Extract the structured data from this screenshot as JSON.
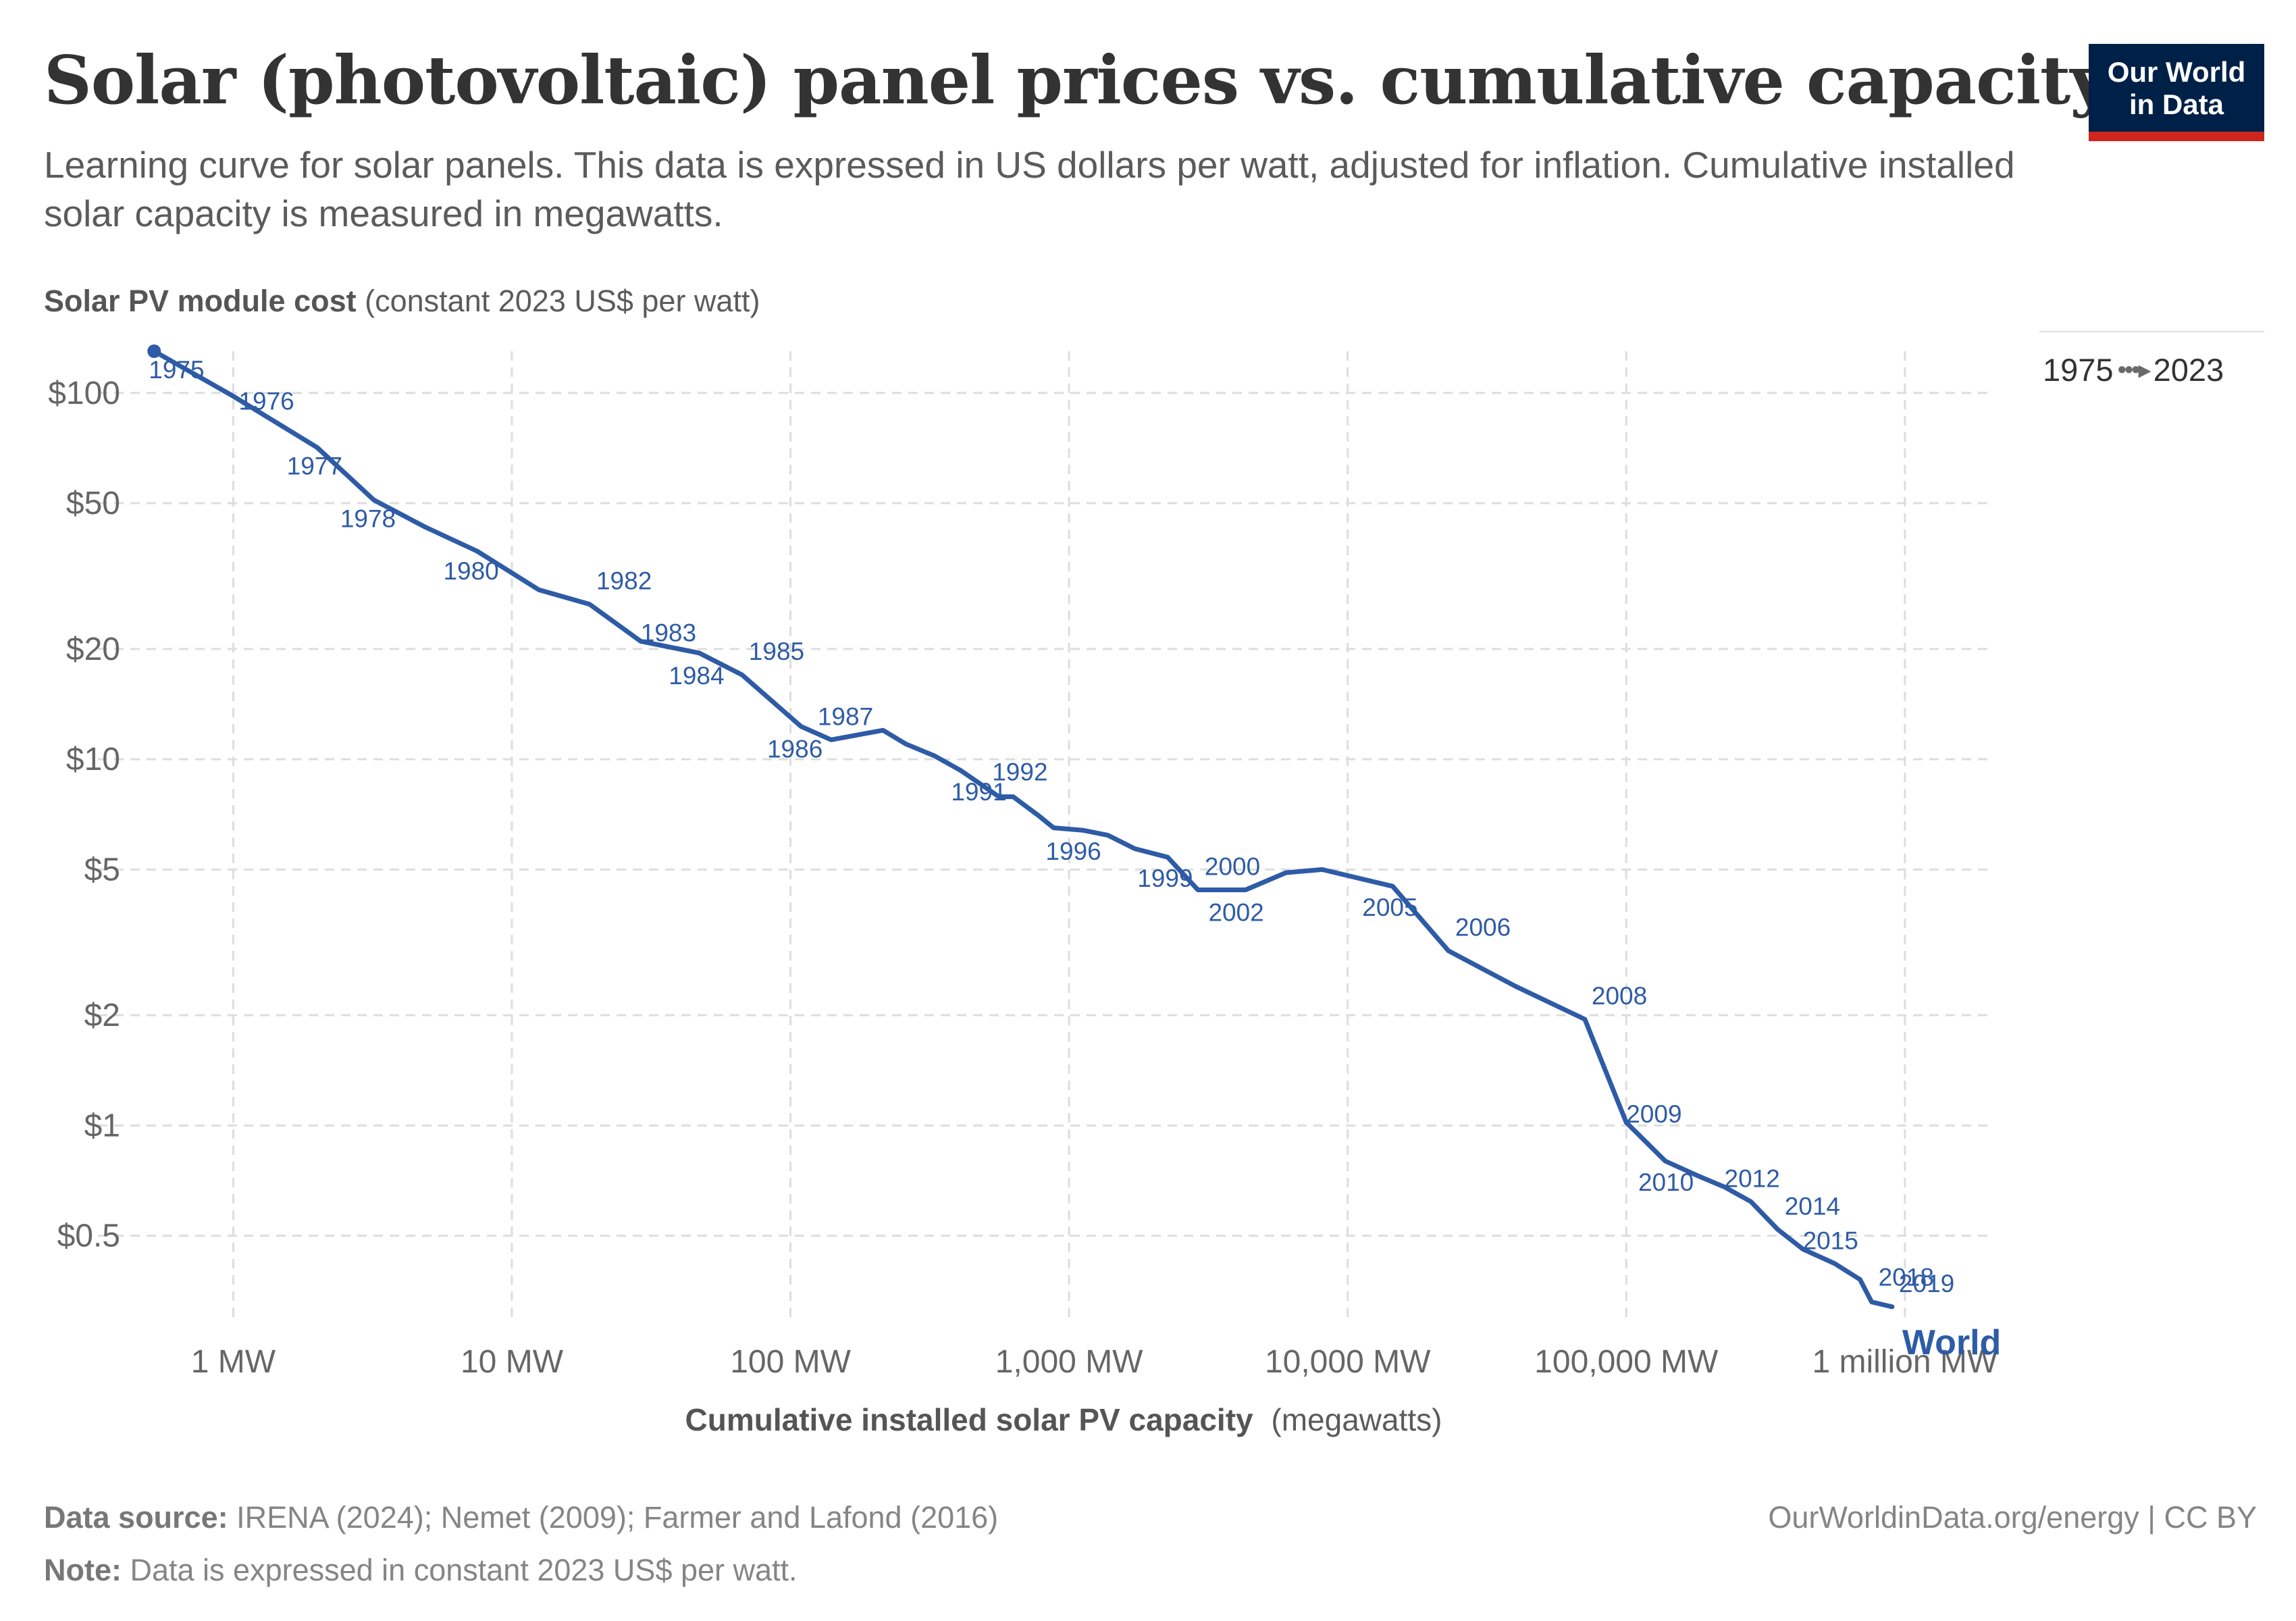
{
  "header": {
    "title": "Solar (photovoltaic) panel prices vs. cumulative capacity",
    "subtitle": "Learning curve for solar panels. This data is expressed in US dollars per watt, adjusted for inflation. Cumulative installed solar capacity is measured in megawatts.",
    "logo_line1": "Our World",
    "logo_line2": "in Data"
  },
  "axes": {
    "y_title_bold": "Solar PV module cost",
    "y_title_rest": "(constant 2023 US$ per watt)",
    "x_title_bold": "Cumulative installed solar PV capacity",
    "x_title_rest": "(megawatts)"
  },
  "timeline": {
    "start": "1975",
    "end": "2023"
  },
  "footer": {
    "source_label": "Data source:",
    "source_text": "IRENA (2024); Nemet (2009); Farmer and Lafond (2016)",
    "note_label": "Note:",
    "note_text": "Data is expressed in constant 2023 US$ per watt.",
    "credit": "OurWorldinData.org/energy | CC BY"
  },
  "colors": {
    "series": "#2e5ba6",
    "grid": "#dddddd",
    "logo_bg": "#002147",
    "logo_accent": "#ce261e"
  },
  "chart_data": {
    "type": "line",
    "x_scale": "log",
    "y_scale": "log",
    "xlim": [
      0.42,
      2000000
    ],
    "ylim": [
      0.3,
      130
    ],
    "grid": true,
    "x_ticks": [
      {
        "value": 1,
        "label": "1 MW"
      },
      {
        "value": 10,
        "label": "10 MW"
      },
      {
        "value": 100,
        "label": "100 MW"
      },
      {
        "value": 1000,
        "label": "1,000 MW"
      },
      {
        "value": 10000,
        "label": "10,000 MW"
      },
      {
        "value": 100000,
        "label": "100,000 MW"
      },
      {
        "value": 1000000,
        "label": "1 million MW"
      }
    ],
    "y_ticks": [
      {
        "value": 100,
        "label": "$100"
      },
      {
        "value": 50,
        "label": "$50"
      },
      {
        "value": 20,
        "label": "$20"
      },
      {
        "value": 10,
        "label": "$10"
      },
      {
        "value": 5,
        "label": "$5"
      },
      {
        "value": 2,
        "label": "$2"
      },
      {
        "value": 1,
        "label": "$1"
      },
      {
        "value": 0.5,
        "label": "$0.5"
      }
    ],
    "series": [
      {
        "name": "World",
        "points": [
          {
            "year": 1975,
            "x": 0.52,
            "y": 130,
            "label": "1975"
          },
          {
            "year": 1976,
            "x": 1.0,
            "y": 98,
            "label": "1976"
          },
          {
            "year": 1977,
            "x": 2.0,
            "y": 71,
            "label": "1977"
          },
          {
            "year": 1978,
            "x": 3.2,
            "y": 51,
            "label": "1978"
          },
          {
            "year": 1979,
            "x": 4.9,
            "y": 43
          },
          {
            "year": 1980,
            "x": 7.5,
            "y": 37,
            "label": "1980"
          },
          {
            "year": 1981,
            "x": 12.5,
            "y": 29
          },
          {
            "year": 1982,
            "x": 19,
            "y": 26.5,
            "label": "1982"
          },
          {
            "year": 1983,
            "x": 29,
            "y": 21,
            "label": "1983"
          },
          {
            "year": 1984,
            "x": 47,
            "y": 19.5,
            "label": "1984"
          },
          {
            "year": 1985,
            "x": 67,
            "y": 17,
            "label": "1985"
          },
          {
            "year": 1986,
            "x": 109,
            "y": 12.3,
            "label": "1986"
          },
          {
            "year": 1987,
            "x": 140,
            "y": 11.3,
            "label": "1987"
          },
          {
            "year": 1988,
            "x": 215,
            "y": 12.0
          },
          {
            "year": 1989,
            "x": 260,
            "y": 11.0
          },
          {
            "year": 1990,
            "x": 330,
            "y": 10.2
          },
          {
            "year": 1991,
            "x": 410,
            "y": 9.3,
            "label": "1991"
          },
          {
            "year": 1992,
            "x": 560,
            "y": 7.9,
            "label": "1992"
          },
          {
            "year": 1993,
            "x": 630,
            "y": 7.9
          },
          {
            "year": 1994,
            "x": 780,
            "y": 7.0
          },
          {
            "year": 1995,
            "x": 880,
            "y": 6.5
          },
          {
            "year": 1996,
            "x": 1120,
            "y": 6.4,
            "label": "1996"
          },
          {
            "year": 1997,
            "x": 1380,
            "y": 6.2
          },
          {
            "year": 1998,
            "x": 1720,
            "y": 5.7
          },
          {
            "year": 1999,
            "x": 2260,
            "y": 5.4,
            "label": "1999"
          },
          {
            "year": 2000,
            "x": 2900,
            "y": 4.4,
            "label": "2000"
          },
          {
            "year": 2001,
            "x": 3600,
            "y": 4.4
          },
          {
            "year": 2002,
            "x": 4300,
            "y": 4.4,
            "label": "2002"
          },
          {
            "year": 2003,
            "x": 6000,
            "y": 4.9
          },
          {
            "year": 2004,
            "x": 8100,
            "y": 5.0
          },
          {
            "year": 2005,
            "x": 14500,
            "y": 4.5,
            "label": "2005"
          },
          {
            "year": 2006,
            "x": 23000,
            "y": 3.0,
            "label": "2006"
          },
          {
            "year": 2007,
            "x": 40000,
            "y": 2.4
          },
          {
            "year": 2008,
            "x": 71000,
            "y": 1.95,
            "label": "2008"
          },
          {
            "year": 2009,
            "x": 100000,
            "y": 1.02,
            "label": "2009"
          },
          {
            "year": 2010,
            "x": 138000,
            "y": 0.8,
            "label": "2010"
          },
          {
            "year": 2011,
            "x": 180000,
            "y": 0.73
          },
          {
            "year": 2012,
            "x": 225000,
            "y": 0.68,
            "label": "2012"
          },
          {
            "year": 2013,
            "x": 280000,
            "y": 0.62
          },
          {
            "year": 2014,
            "x": 350000,
            "y": 0.52,
            "label": "2014"
          },
          {
            "year": 2015,
            "x": 430000,
            "y": 0.46,
            "label": "2015"
          },
          {
            "year": 2016,
            "x": 560000,
            "y": 0.42
          },
          {
            "year": 2017,
            "x": 690000,
            "y": 0.38
          },
          {
            "year": 2018,
            "x": 760000,
            "y": 0.33,
            "label": "2018"
          },
          {
            "year": 2019,
            "x": 900000,
            "y": 0.32,
            "label": "2019"
          }
        ]
      }
    ]
  }
}
